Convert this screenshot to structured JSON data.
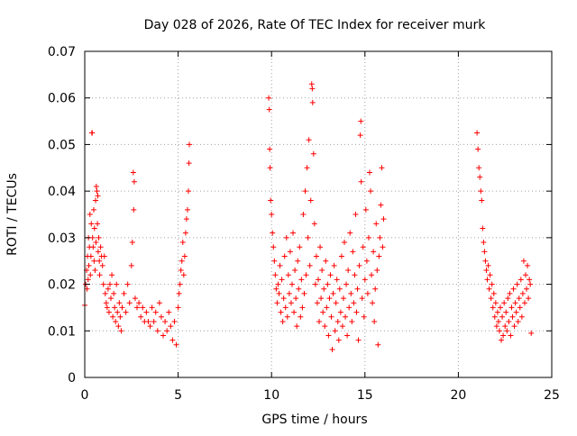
{
  "chart_data": {
    "type": "scatter",
    "title": "Day 028 of 2026, Rate Of TEC Index for receiver murk",
    "xlabel": "GPS time / hours",
    "ylabel": "ROTI / TECUs",
    "xlim": [
      0,
      25
    ],
    "ylim": [
      0,
      0.07
    ],
    "xticks": [
      0,
      5,
      10,
      15,
      20,
      25
    ],
    "xtick_labels": [
      "0",
      "5",
      "10",
      "15",
      "20",
      "25"
    ],
    "yticks": [
      0,
      0.01,
      0.02,
      0.03,
      0.04,
      0.05,
      0.06,
      0.07
    ],
    "ytick_labels": [
      "0",
      "0.01",
      "0.02",
      "0.03",
      "0.04",
      "0.05",
      "0.06",
      "0.07"
    ],
    "grid": true,
    "marker": "plus",
    "color": "#ff0000",
    "series": [
      {
        "points": [
          [
            0.0,
            0.0155
          ],
          [
            0.05,
            0.02
          ],
          [
            0.1,
            0.023
          ],
          [
            0.12,
            0.019
          ],
          [
            0.15,
            0.026
          ],
          [
            0.18,
            0.021
          ],
          [
            0.2,
            0.03
          ],
          [
            0.22,
            0.024
          ],
          [
            0.25,
            0.028
          ],
          [
            0.28,
            0.035
          ],
          [
            0.3,
            0.022
          ],
          [
            0.33,
            0.026
          ],
          [
            0.35,
            0.033
          ],
          [
            0.38,
            0.0525
          ],
          [
            0.4,
            0.0525
          ],
          [
            0.42,
            0.03
          ],
          [
            0.45,
            0.028
          ],
          [
            0.48,
            0.036
          ],
          [
            0.5,
            0.025
          ],
          [
            0.52,
            0.032
          ],
          [
            0.55,
            0.023
          ],
          [
            0.58,
            0.038
          ],
          [
            0.6,
            0.029
          ],
          [
            0.62,
            0.041
          ],
          [
            0.65,
            0.04
          ],
          [
            0.68,
            0.033
          ],
          [
            0.7,
            0.039
          ],
          [
            0.72,
            0.027
          ],
          [
            0.75,
            0.03
          ],
          [
            0.78,
            0.025
          ],
          [
            0.8,
            0.022
          ],
          [
            0.85,
            0.028
          ],
          [
            0.9,
            0.026
          ],
          [
            0.95,
            0.024
          ],
          [
            1.0,
            0.02
          ],
          [
            1.05,
            0.026
          ],
          [
            1.1,
            0.018
          ],
          [
            1.15,
            0.016
          ],
          [
            1.2,
            0.015
          ],
          [
            1.25,
            0.019
          ],
          [
            1.3,
            0.014
          ],
          [
            1.35,
            0.02
          ],
          [
            1.4,
            0.017
          ],
          [
            1.45,
            0.022
          ],
          [
            1.5,
            0.013
          ],
          [
            1.55,
            0.018
          ],
          [
            1.6,
            0.015
          ],
          [
            1.65,
            0.012
          ],
          [
            1.7,
            0.02
          ],
          [
            1.75,
            0.014
          ],
          [
            1.8,
            0.011
          ],
          [
            1.85,
            0.016
          ],
          [
            1.9,
            0.013
          ],
          [
            1.95,
            0.01
          ],
          [
            2.0,
            0.015
          ],
          [
            2.1,
            0.018
          ],
          [
            2.2,
            0.014
          ],
          [
            2.3,
            0.02
          ],
          [
            2.4,
            0.016
          ],
          [
            2.5,
            0.024
          ],
          [
            2.55,
            0.029
          ],
          [
            2.6,
            0.044
          ],
          [
            2.62,
            0.036
          ],
          [
            2.65,
            0.042
          ],
          [
            2.7,
            0.017
          ],
          [
            2.8,
            0.015
          ],
          [
            2.9,
            0.016
          ],
          [
            3.0,
            0.013
          ],
          [
            3.1,
            0.015
          ],
          [
            3.2,
            0.012
          ],
          [
            3.3,
            0.014
          ],
          [
            3.4,
            0.012
          ],
          [
            3.5,
            0.011
          ],
          [
            3.6,
            0.015
          ],
          [
            3.7,
            0.012
          ],
          [
            3.8,
            0.014
          ],
          [
            3.9,
            0.01
          ],
          [
            4.0,
            0.016
          ],
          [
            4.1,
            0.013
          ],
          [
            4.2,
            0.009
          ],
          [
            4.3,
            0.012
          ],
          [
            4.4,
            0.01
          ],
          [
            4.5,
            0.014
          ],
          [
            4.6,
            0.011
          ],
          [
            4.7,
            0.008
          ],
          [
            4.8,
            0.012
          ],
          [
            4.9,
            0.007
          ],
          [
            5.0,
            0.015
          ],
          [
            5.05,
            0.018
          ],
          [
            5.1,
            0.02
          ],
          [
            5.15,
            0.023
          ],
          [
            5.2,
            0.025
          ],
          [
            5.25,
            0.029
          ],
          [
            5.3,
            0.022
          ],
          [
            5.35,
            0.026
          ],
          [
            5.4,
            0.031
          ],
          [
            5.45,
            0.034
          ],
          [
            5.5,
            0.036
          ],
          [
            5.55,
            0.04
          ],
          [
            5.58,
            0.046
          ],
          [
            5.6,
            0.05
          ]
        ]
      },
      {
        "points": [
          [
            9.85,
            0.06
          ],
          [
            9.88,
            0.0575
          ],
          [
            9.9,
            0.049
          ],
          [
            9.92,
            0.045
          ],
          [
            9.95,
            0.038
          ],
          [
            10.0,
            0.035
          ],
          [
            10.05,
            0.031
          ],
          [
            10.1,
            0.028
          ],
          [
            10.15,
            0.025
          ],
          [
            10.2,
            0.022
          ],
          [
            10.25,
            0.019
          ],
          [
            10.3,
            0.016
          ],
          [
            10.35,
            0.02
          ],
          [
            10.4,
            0.018
          ],
          [
            10.45,
            0.024
          ],
          [
            10.5,
            0.014
          ],
          [
            10.55,
            0.021
          ],
          [
            10.6,
            0.012
          ],
          [
            10.65,
            0.017
          ],
          [
            10.7,
            0.026
          ],
          [
            10.75,
            0.015
          ],
          [
            10.8,
            0.03
          ],
          [
            10.85,
            0.013
          ],
          [
            10.9,
            0.022
          ],
          [
            10.95,
            0.018
          ],
          [
            11.0,
            0.027
          ],
          [
            11.05,
            0.016
          ],
          [
            11.1,
            0.02
          ],
          [
            11.15,
            0.031
          ],
          [
            11.2,
            0.014
          ],
          [
            11.25,
            0.023
          ],
          [
            11.3,
            0.017
          ],
          [
            11.35,
            0.011
          ],
          [
            11.4,
            0.025
          ],
          [
            11.45,
            0.019
          ],
          [
            11.5,
            0.028
          ],
          [
            11.55,
            0.013
          ],
          [
            11.6,
            0.021
          ],
          [
            11.65,
            0.015
          ],
          [
            11.7,
            0.035
          ],
          [
            11.75,
            0.018
          ],
          [
            11.8,
            0.04
          ],
          [
            11.85,
            0.022
          ],
          [
            11.9,
            0.045
          ],
          [
            11.95,
            0.03
          ],
          [
            12.0,
            0.051
          ],
          [
            12.05,
            0.024
          ],
          [
            12.1,
            0.038
          ],
          [
            12.15,
            0.063
          ],
          [
            12.18,
            0.062
          ],
          [
            12.2,
            0.059
          ],
          [
            12.25,
            0.048
          ],
          [
            12.3,
            0.033
          ],
          [
            12.35,
            0.02
          ],
          [
            12.4,
            0.026
          ],
          [
            12.45,
            0.016
          ],
          [
            12.5,
            0.021
          ],
          [
            12.55,
            0.012
          ],
          [
            12.6,
            0.028
          ],
          [
            12.65,
            0.017
          ],
          [
            12.7,
            0.023
          ],
          [
            12.75,
            0.014
          ],
          [
            12.8,
            0.019
          ],
          [
            12.85,
            0.011
          ],
          [
            12.9,
            0.025
          ],
          [
            12.95,
            0.015
          ],
          [
            13.0,
            0.02
          ],
          [
            13.05,
            0.009
          ],
          [
            13.1,
            0.017
          ],
          [
            13.15,
            0.022
          ],
          [
            13.2,
            0.013
          ],
          [
            13.25,
            0.006
          ],
          [
            13.3,
            0.018
          ],
          [
            13.35,
            0.024
          ],
          [
            13.4,
            0.01
          ],
          [
            13.45,
            0.016
          ],
          [
            13.5,
            0.021
          ],
          [
            13.55,
            0.012
          ],
          [
            13.6,
            0.008
          ],
          [
            13.65,
            0.019
          ],
          [
            13.7,
            0.014
          ],
          [
            13.75,
            0.026
          ],
          [
            13.8,
            0.011
          ],
          [
            13.85,
            0.017
          ],
          [
            13.9,
            0.029
          ],
          [
            13.95,
            0.013
          ],
          [
            14.0,
            0.02
          ],
          [
            14.05,
            0.009
          ],
          [
            14.1,
            0.023
          ],
          [
            14.15,
            0.015
          ],
          [
            14.2,
            0.031
          ],
          [
            14.25,
            0.018
          ],
          [
            14.3,
            0.012
          ],
          [
            14.35,
            0.027
          ],
          [
            14.4,
            0.016
          ],
          [
            14.45,
            0.022
          ],
          [
            14.5,
            0.035
          ],
          [
            14.55,
            0.014
          ],
          [
            14.6,
            0.019
          ],
          [
            14.65,
            0.008
          ],
          [
            14.7,
            0.024
          ],
          [
            14.75,
            0.052
          ],
          [
            14.78,
            0.055
          ],
          [
            14.8,
            0.042
          ],
          [
            14.85,
            0.017
          ],
          [
            14.9,
            0.028
          ],
          [
            14.95,
            0.013
          ],
          [
            15.0,
            0.021
          ],
          [
            15.05,
            0.036
          ],
          [
            15.1,
            0.025
          ],
          [
            15.15,
            0.018
          ],
          [
            15.2,
            0.03
          ],
          [
            15.25,
            0.044
          ],
          [
            15.3,
            0.04
          ],
          [
            15.35,
            0.022
          ],
          [
            15.4,
            0.016
          ],
          [
            15.45,
            0.027
          ],
          [
            15.5,
            0.012
          ],
          [
            15.55,
            0.019
          ],
          [
            15.6,
            0.033
          ],
          [
            15.65,
            0.023
          ],
          [
            15.7,
            0.007
          ],
          [
            15.75,
            0.026
          ],
          [
            15.8,
            0.03
          ],
          [
            15.85,
            0.037
          ],
          [
            15.9,
            0.045
          ],
          [
            15.95,
            0.028
          ],
          [
            16.0,
            0.034
          ]
        ]
      },
      {
        "points": [
          [
            21.0,
            0.0525
          ],
          [
            21.05,
            0.049
          ],
          [
            21.1,
            0.045
          ],
          [
            21.15,
            0.043
          ],
          [
            21.2,
            0.04
          ],
          [
            21.25,
            0.038
          ],
          [
            21.3,
            0.032
          ],
          [
            21.35,
            0.029
          ],
          [
            21.4,
            0.027
          ],
          [
            21.45,
            0.025
          ],
          [
            21.5,
            0.023
          ],
          [
            21.55,
            0.021
          ],
          [
            21.6,
            0.024
          ],
          [
            21.65,
            0.019
          ],
          [
            21.7,
            0.022
          ],
          [
            21.75,
            0.017
          ],
          [
            21.8,
            0.02
          ],
          [
            21.85,
            0.015
          ],
          [
            21.9,
            0.018
          ],
          [
            21.95,
            0.013
          ],
          [
            22.0,
            0.016
          ],
          [
            22.05,
            0.011
          ],
          [
            22.1,
            0.014
          ],
          [
            22.15,
            0.012
          ],
          [
            22.2,
            0.01
          ],
          [
            22.25,
            0.015
          ],
          [
            22.3,
            0.008
          ],
          [
            22.35,
            0.013
          ],
          [
            22.4,
            0.009
          ],
          [
            22.45,
            0.016
          ],
          [
            22.5,
            0.011
          ],
          [
            22.55,
            0.014
          ],
          [
            22.6,
            0.01
          ],
          [
            22.65,
            0.017
          ],
          [
            22.7,
            0.012
          ],
          [
            22.75,
            0.018
          ],
          [
            22.8,
            0.009
          ],
          [
            22.85,
            0.015
          ],
          [
            22.9,
            0.013
          ],
          [
            22.95,
            0.019
          ],
          [
            23.0,
            0.011
          ],
          [
            23.05,
            0.016
          ],
          [
            23.1,
            0.014
          ],
          [
            23.15,
            0.02
          ],
          [
            23.2,
            0.012
          ],
          [
            23.25,
            0.017
          ],
          [
            23.3,
            0.015
          ],
          [
            23.35,
            0.021
          ],
          [
            23.4,
            0.013
          ],
          [
            23.45,
            0.018
          ],
          [
            23.5,
            0.025
          ],
          [
            23.55,
            0.016
          ],
          [
            23.6,
            0.022
          ],
          [
            23.65,
            0.019
          ],
          [
            23.7,
            0.024
          ],
          [
            23.75,
            0.017
          ],
          [
            23.8,
            0.021
          ],
          [
            23.85,
            0.02
          ],
          [
            23.9,
            0.0095
          ]
        ]
      }
    ]
  }
}
